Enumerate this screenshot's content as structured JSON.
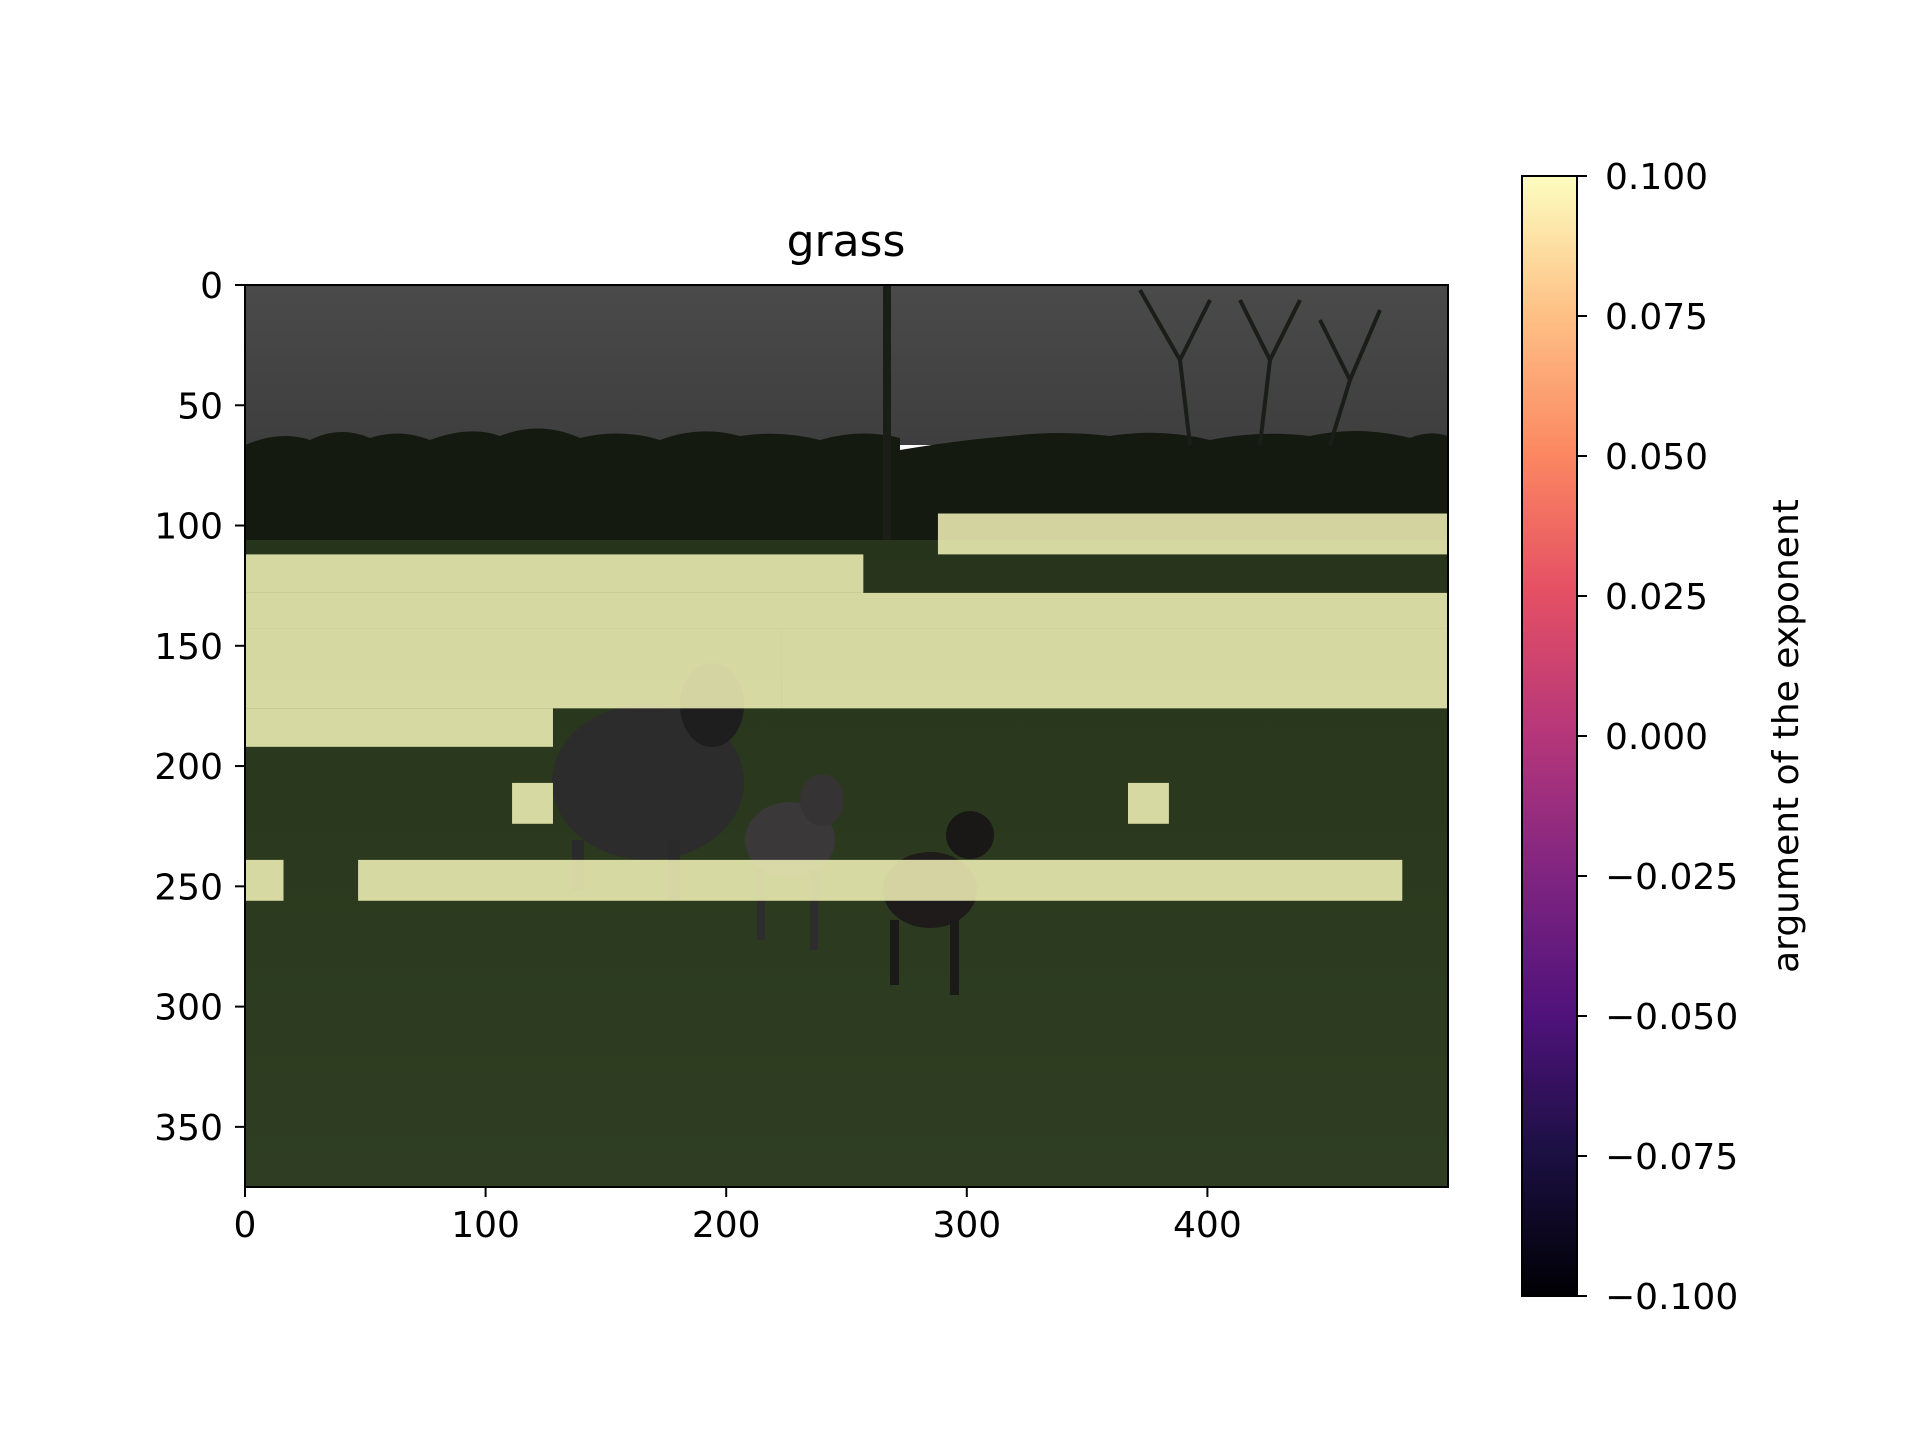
{
  "chart_data": {
    "type": "heatmap",
    "title": "grass",
    "xlim": [
      0,
      500
    ],
    "ylim": [
      375,
      0
    ],
    "x_ticks": [
      0,
      100,
      200,
      300,
      400
    ],
    "y_ticks": [
      0,
      50,
      100,
      150,
      200,
      250,
      300,
      350
    ],
    "y_inverted": true,
    "background": "photo of a grass field with a ewe and two lambs, darkened",
    "overlay_color": "#fcfdbf",
    "overlay_regions": [
      {
        "x": [
          288,
          500
        ],
        "y": [
          95,
          112
        ]
      },
      {
        "x": [
          0,
          257
        ],
        "y": [
          112,
          128
        ]
      },
      {
        "x": [
          0,
          500
        ],
        "y": [
          128,
          143
        ]
      },
      {
        "x": [
          223,
          500
        ],
        "y": [
          143,
          176
        ]
      },
      {
        "x": [
          0,
          223
        ],
        "y": [
          143,
          176
        ]
      },
      {
        "x": [
          0,
          128
        ],
        "y": [
          176,
          192
        ]
      },
      {
        "x": [
          111,
          128
        ],
        "y": [
          207,
          224
        ]
      },
      {
        "x": [
          367,
          384
        ],
        "y": [
          207,
          224
        ]
      },
      {
        "x": [
          0,
          16
        ],
        "y": [
          239,
          256
        ]
      },
      {
        "x": [
          47,
          481
        ],
        "y": [
          239,
          256
        ]
      }
    ],
    "colorbar": {
      "colormap": "magma",
      "label": "argument of the exponent",
      "range": [
        -0.1,
        0.1
      ],
      "tick_values": [
        0.1,
        0.075,
        0.05,
        0.025,
        0.0,
        -0.025,
        -0.05,
        -0.075,
        -0.1
      ],
      "tick_labels": [
        "0.100",
        "0.075",
        "0.050",
        "0.025",
        "0.000",
        "−0.025",
        "−0.050",
        "−0.075",
        "−0.100"
      ]
    },
    "grid": false
  }
}
